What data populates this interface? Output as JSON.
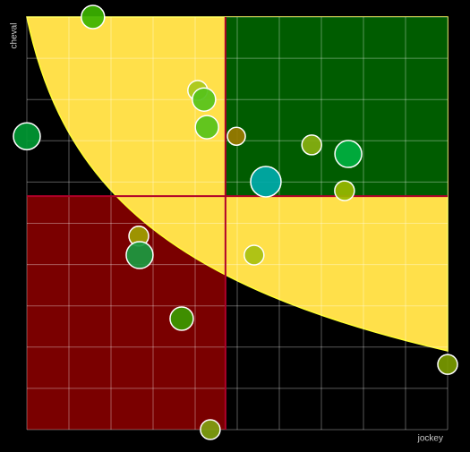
{
  "chart_data": {
    "type": "scatter",
    "x_label": "jockey",
    "y_label": "cheval",
    "xlim": [
      0,
      10
    ],
    "ylim": [
      0,
      10
    ],
    "xticks": [
      0,
      1,
      2,
      3,
      4,
      5,
      6,
      7,
      8,
      9,
      10
    ],
    "yticks": [
      0,
      1,
      2,
      3,
      4,
      5,
      6,
      7,
      8,
      9,
      10
    ],
    "grid": true,
    "reference_lines": {
      "x": 4.72,
      "y": 5.66,
      "color": "#b0002a"
    },
    "quadrant_colors": {
      "low": "#7a0000",
      "high": "#005c00",
      "zone": "#ffe04a"
    },
    "x": [
      1.57,
      0,
      4.06,
      4.21,
      4.28,
      4.98,
      5.68,
      6.77,
      7.64,
      7.55,
      2.66,
      2.68,
      5.4,
      3.68,
      10,
      4.36
    ],
    "y": [
      10,
      7.11,
      8.22,
      8.0,
      7.33,
      7.11,
      6.01,
      6.9,
      6.68,
      5.79,
      4.69,
      4.23,
      4.23,
      2.69,
      1.58,
      0
    ],
    "sizes": [
      13,
      15,
      11,
      13,
      13,
      10,
      17,
      11,
      15,
      11,
      11,
      15,
      11,
      13,
      11,
      11
    ],
    "colors": [
      "#3cb300",
      "#009933",
      "#a8c81a",
      "#55c21a",
      "#55c21a",
      "#9a7a00",
      "#00aaaa",
      "#88b010",
      "#00b040",
      "#99b800",
      "#a0a000",
      "#1a9a40",
      "#a8c010",
      "#3a9a00",
      "#7a9a00",
      "#80a010"
    ]
  }
}
